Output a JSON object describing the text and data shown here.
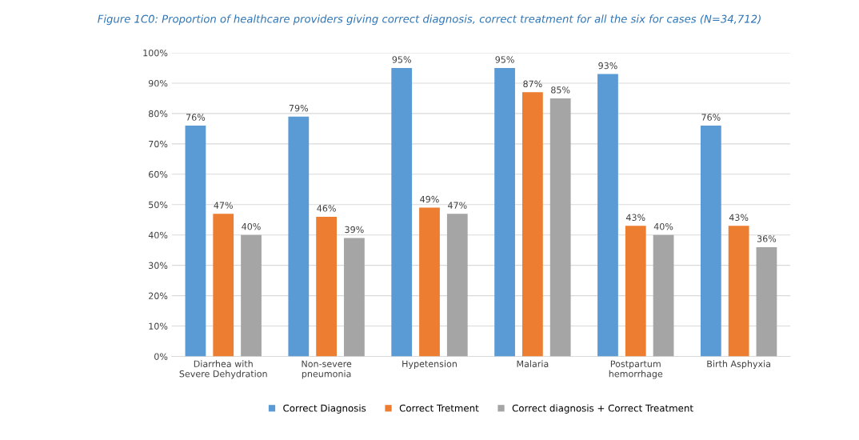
{
  "chart_data": {
    "type": "bar",
    "title": "Figure 1C0: Proportion of healthcare providers giving correct diagnosis, correct treatment for all the six for cases (N=34,712)",
    "categories": [
      "Diarrhea with\nSevere Dehydration",
      "Non-severe\npneumonia",
      "Hypetension",
      "Malaria",
      "Postpartum\nhemorrhage",
      "Birth Asphyxia"
    ],
    "series": [
      {
        "name": "Correct Diagnosis",
        "color": "#5b9bd5",
        "values": [
          76,
          79,
          95,
          95,
          93,
          76
        ],
        "value_labels": [
          "76%",
          "79%",
          "95%",
          "95%",
          "93%",
          "76%"
        ]
      },
      {
        "name": "Correct Tretment",
        "color": "#ed7d31",
        "values": [
          47,
          46,
          49,
          87,
          43,
          43
        ],
        "value_labels": [
          "47%",
          "46%",
          "49%",
          "87%",
          "43%",
          "43%"
        ]
      },
      {
        "name": "Correct diagnosis + Correct Treatment",
        "color": "#a5a5a5",
        "values": [
          40,
          39,
          47,
          85,
          40,
          36
        ],
        "value_labels": [
          "40%",
          "39%",
          "47%",
          "85%",
          "40%",
          "36%"
        ]
      }
    ],
    "ylim": [
      0,
      100
    ],
    "yticks": [
      {
        "value": 0,
        "label": "0%"
      },
      {
        "value": 10,
        "label": "10%"
      },
      {
        "value": 20,
        "label": "20%"
      },
      {
        "value": 30,
        "label": "30%"
      },
      {
        "value": 40,
        "label": "40%"
      },
      {
        "value": 50,
        "label": "50%"
      },
      {
        "value": 60,
        "label": "60%"
      },
      {
        "value": 70,
        "label": "70%"
      },
      {
        "value": 80,
        "label": "80%"
      },
      {
        "value": 90,
        "label": "90%"
      },
      {
        "value": 100,
        "label": "100%"
      }
    ],
    "grid": "y",
    "legend": "bottom"
  }
}
